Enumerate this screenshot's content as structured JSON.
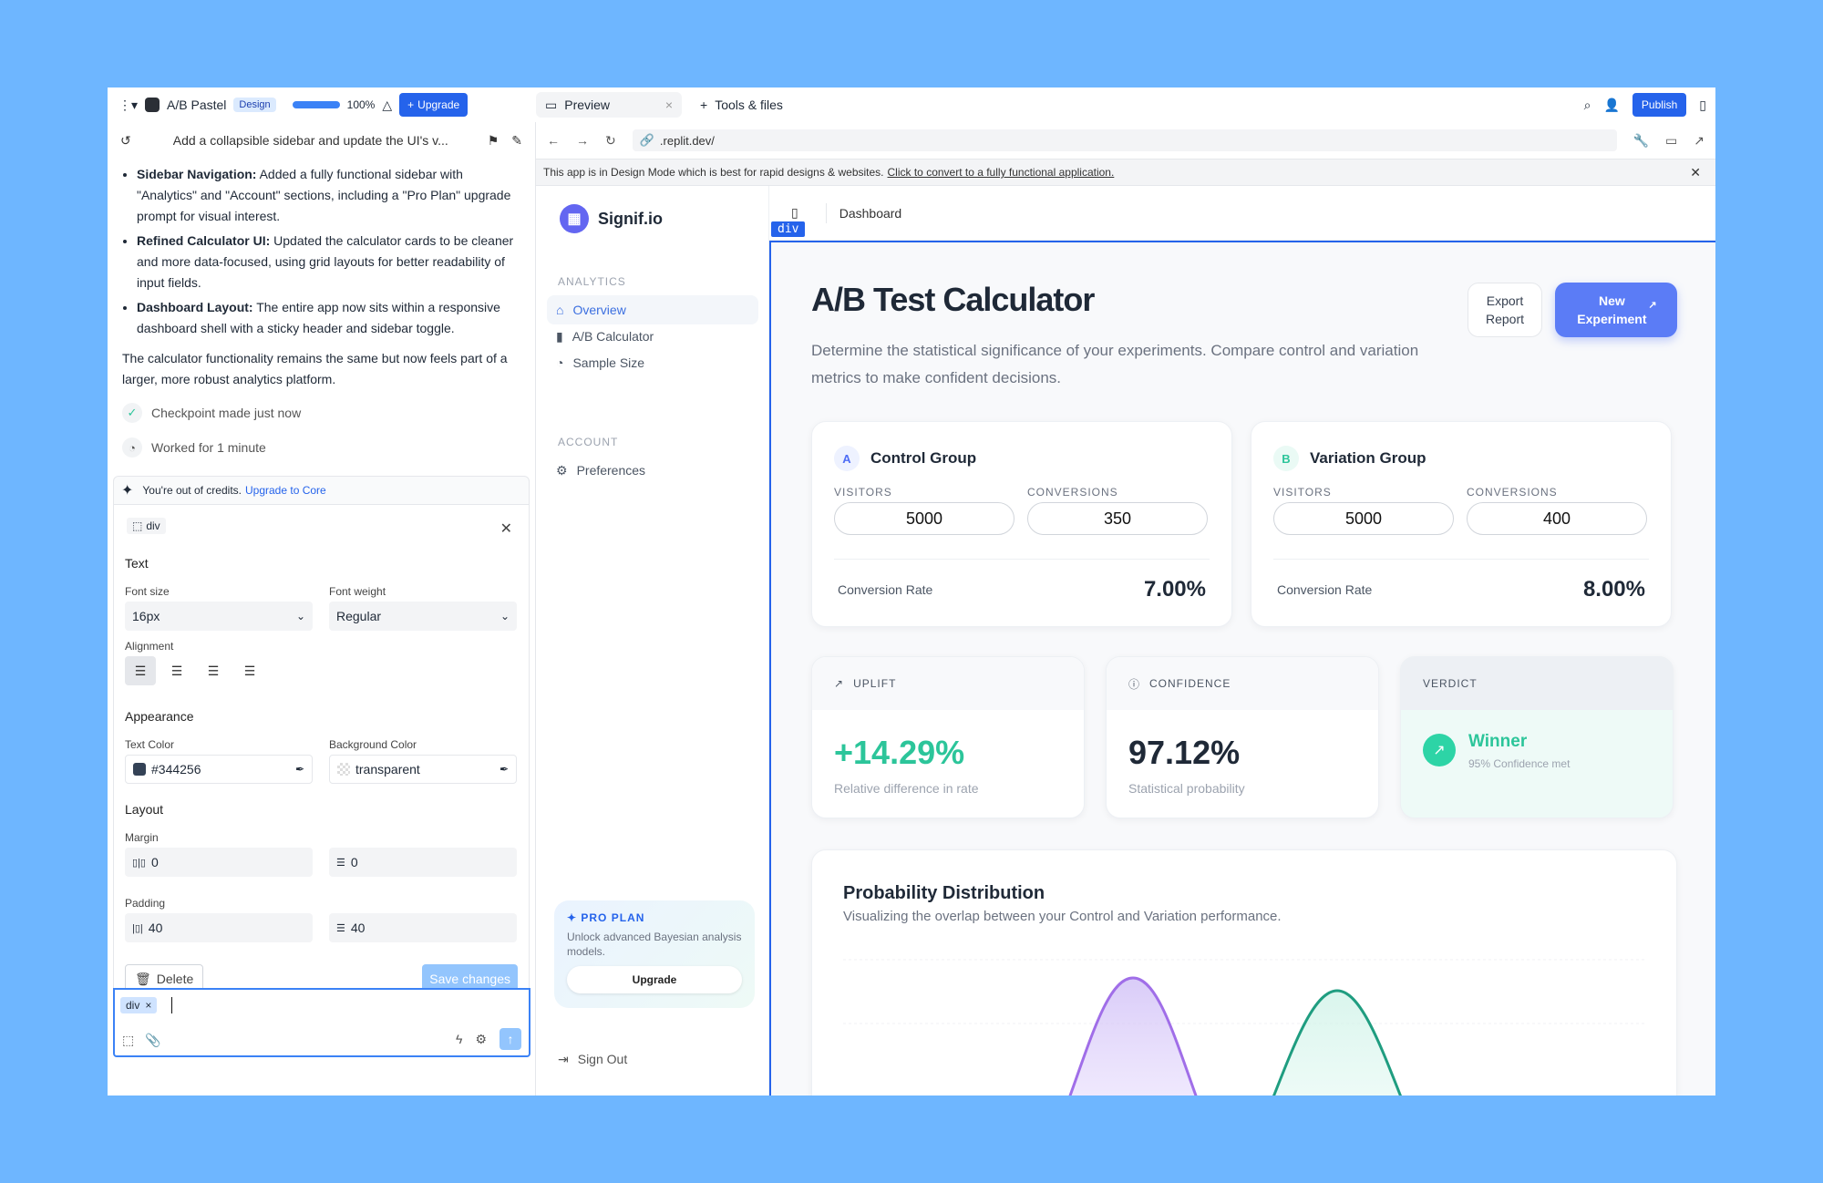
{
  "topbar": {
    "project_name": "A/B Pastel",
    "mode_badge": "Design",
    "progress_label": "100%",
    "progress": 1.0,
    "upgrade_label": "Upgrade",
    "tabs": [
      {
        "label": "Preview"
      },
      {
        "label": "Tools & files"
      }
    ],
    "publish_label": "Publish"
  },
  "chat": {
    "title": "Add a collapsible sidebar and update the UI's v...",
    "bullets": [
      {
        "bold": "Sidebar Navigation:",
        "text": " Added a fully functional sidebar with \"Analytics\" and \"Account\" sections, including a \"Pro Plan\" upgrade prompt for visual interest."
      },
      {
        "bold": "Refined Calculator UI:",
        "text": " Updated the calculator cards to be cleaner and more data-focused, using grid layouts for better readability of input fields."
      },
      {
        "bold": "Dashboard Layout:",
        "text": " The entire app now sits within a responsive dashboard shell with a sticky header and sidebar toggle."
      }
    ],
    "paragraph": "The calculator functionality remains the same but now feels part of a larger, more robust analytics platform.",
    "checkpoint": "Checkpoint made just now",
    "worked": "Worked for 1 minute",
    "credits_text": "You're out of credits.",
    "credits_link": "Upgrade to Core"
  },
  "editor": {
    "tag": "div",
    "text_section": "Text",
    "font_size_label": "Font size",
    "font_size": "16px",
    "font_weight_label": "Font weight",
    "font_weight": "Regular",
    "alignment_label": "Alignment",
    "appearance_section": "Appearance",
    "text_color_label": "Text Color",
    "text_color": "#344256",
    "bg_color_label": "Background Color",
    "bg_color": "transparent",
    "layout_section": "Layout",
    "margin_label": "Margin",
    "margin_x": "0",
    "margin_y": "0",
    "padding_label": "Padding",
    "padding_x": "40",
    "padding_y": "40",
    "delete_label": "Delete",
    "save_label": "Save changes"
  },
  "composer": {
    "chip": "div"
  },
  "browser": {
    "url": ".replit.dev/",
    "notice": "This app is in Design Mode which is best for rapid designs & websites.",
    "notice_link": "Click to convert to a fully functional application."
  },
  "app": {
    "brand": "Signif.io",
    "sections": [
      {
        "title": "ANALYTICS",
        "items": [
          "Overview",
          "A/B Calculator",
          "Sample Size"
        ]
      },
      {
        "title": "ACCOUNT",
        "items": [
          "Preferences"
        ]
      }
    ],
    "pro": {
      "title": "PRO PLAN",
      "desc": "Unlock advanced Bayesian analysis models.",
      "button": "Upgrade"
    },
    "signout": "Sign Out",
    "header": "Dashboard",
    "divtag": "div",
    "title": "A/B Test Calculator",
    "subtitle": "Determine the statistical significance of your experiments. Compare control and variation metrics to make confident decisions.",
    "export_label": "Export Report",
    "new_label": "New Experiment",
    "control": {
      "letter": "A",
      "name": "Control Group",
      "visitors_label": "VISITORS",
      "visitors": "5000",
      "conversions_label": "CONVERSIONS",
      "conversions": "350",
      "rate_label": "Conversion Rate",
      "rate": "7.00%"
    },
    "variation": {
      "letter": "B",
      "name": "Variation Group",
      "visitors_label": "VISITORS",
      "visitors": "5000",
      "conversions_label": "CONVERSIONS",
      "conversions": "400",
      "rate_label": "Conversion Rate",
      "rate": "8.00%"
    },
    "uplift": {
      "label": "UPLIFT",
      "value": "+14.29%",
      "desc": "Relative difference in rate"
    },
    "confidence": {
      "label": "CONFIDENCE",
      "value": "97.12%",
      "desc": "Statistical probability"
    },
    "verdict": {
      "label": "VERDICT",
      "value": "Winner",
      "desc": "95% Confidence met"
    },
    "dist": {
      "title": "Probability Distribution",
      "subtitle": "Visualizing the overlap between your Control and Variation performance."
    }
  },
  "colors": {
    "accent": "#2563eb",
    "brand": "#5b7cf6",
    "green": "#2cc59a",
    "purple": "#a06ee8",
    "teal": "#1f9d80"
  }
}
